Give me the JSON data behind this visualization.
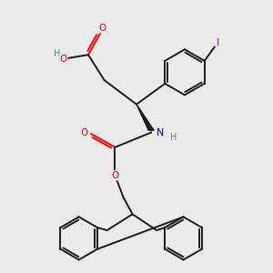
{
  "bg_color": "#ebebeb",
  "bond_color": "#1a1a1a",
  "atom_colors": {
    "O": "#ff0000",
    "N": "#0000cc",
    "I": "#aa00aa",
    "H_acid": "#558888",
    "C": "#1a1a1a"
  },
  "figsize": [
    3.0,
    3.0
  ],
  "dpi": 100
}
